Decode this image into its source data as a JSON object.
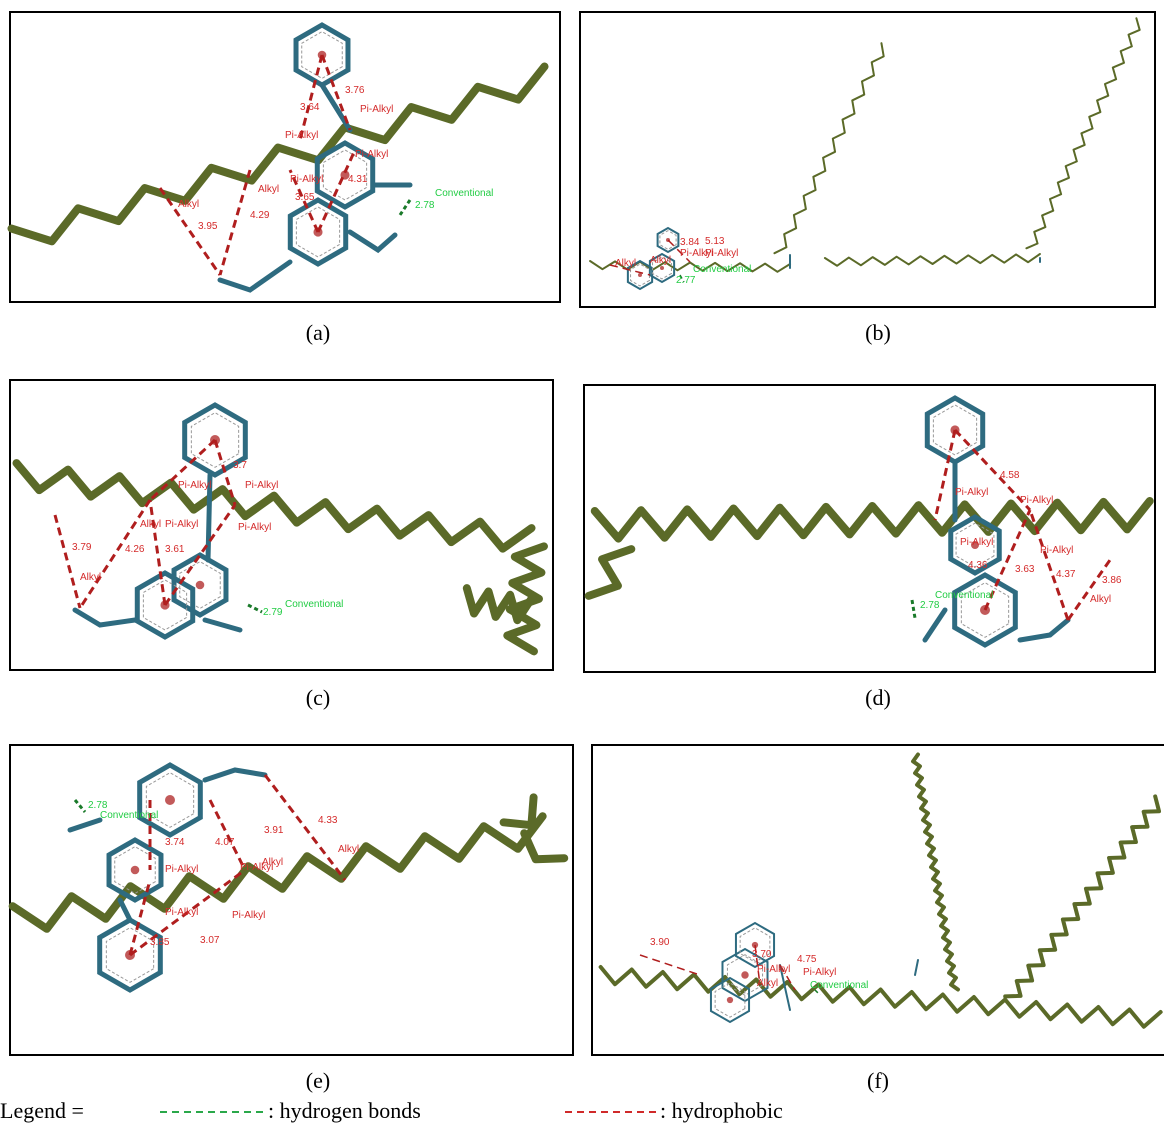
{
  "panels": [
    {
      "label": "(a)",
      "hydrophobic": [
        "3.64",
        "3.76",
        "Pi-Alkyl",
        "Pi-Alkyl",
        "Pi-Alkyl",
        "Pi-Alkyl",
        "Alkyl",
        "Alkyl",
        "4.31",
        "3.65",
        "4.29",
        "3.95"
      ],
      "hydrogen_bond": [
        "Conventional",
        "2.78"
      ]
    },
    {
      "label": "(b)",
      "hydrophobic": [
        "3.84",
        "5.13",
        "Pi-Alkyl",
        "Pi-Alkyl",
        "Alkyl",
        "Alkyl"
      ],
      "hydrogen_bond": [
        "Conventional",
        "2.77"
      ]
    },
    {
      "label": "(c)",
      "hydrophobic": [
        "3.79",
        "Alkyl",
        "4.26",
        "Alkyl",
        "Pi-Alkyl",
        "3.61",
        "Pi-Alkyl",
        "Pi-Alkyl",
        "Pi-Alkyl",
        "3.7"
      ],
      "hydrogen_bond": [
        "Conventional",
        "2.79"
      ]
    },
    {
      "label": "(d)",
      "hydrophobic": [
        "4.58",
        "Pi-Alkyl",
        "Pi-Alkyl",
        "Pi-Alkyl",
        "4.36",
        "3.63",
        "Pi-Alkyl",
        "4.37",
        "3.86",
        "Alkyl"
      ],
      "hydrogen_bond": [
        "Conventional",
        "2.78"
      ]
    },
    {
      "label": "(e)",
      "hydrophobic": [
        "3.74",
        "4.07",
        "3.91",
        "4.33",
        "Alkyl",
        "Alkyl",
        "Pi-Alkyl",
        "Pi-Alkyl",
        "Pi-Alkyl",
        "Pi-Alkyl",
        "3.85",
        "3.07"
      ],
      "hydrogen_bond": [
        "2.78",
        "Conventional"
      ]
    },
    {
      "label": "(f)",
      "hydrophobic": [
        "3.90",
        "3.70",
        "4.75",
        "Pi-Alkyl",
        "Pi-Alkyl",
        "Alkyl"
      ],
      "hydrogen_bond": [
        "Conventional"
      ]
    }
  ],
  "legend": {
    "prefix": "Legend =",
    "items": [
      ": hydrogen bonds",
      ": hydrophobic"
    ]
  }
}
